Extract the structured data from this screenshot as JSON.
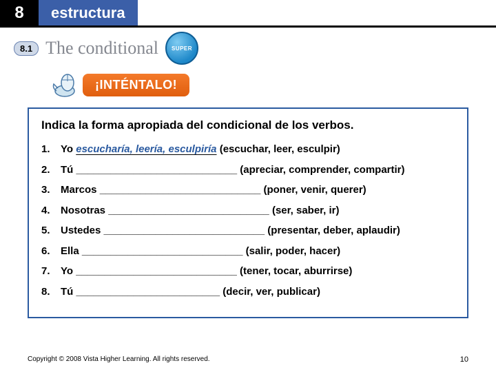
{
  "header": {
    "chapter": "8",
    "label": "estructura"
  },
  "section": {
    "badge": "8.1",
    "title": "The conditional",
    "super": "SUPER"
  },
  "intentalo": {
    "label": "¡INTÉNTALO!"
  },
  "exercise": {
    "instructions": "Indica la forma apropiada del condicional de los verbos.",
    "items": [
      {
        "n": "1.",
        "pre": "Yo ",
        "answer": "escucharía, leería, esculpiría",
        "blank": "",
        "post": " (escuchar, leer, esculpir)"
      },
      {
        "n": "2.",
        "pre": "Tú ",
        "answer": "",
        "blank": "____________________________",
        "post": " (apreciar, comprender, compartir)"
      },
      {
        "n": "3.",
        "pre": "Marcos ",
        "answer": "",
        "blank": "____________________________",
        "post": " (poner, venir, querer)"
      },
      {
        "n": "4.",
        "pre": "Nosotras ",
        "answer": "",
        "blank": "____________________________",
        "post": " (ser, saber, ir)"
      },
      {
        "n": "5.",
        "pre": "Ustedes ",
        "answer": "",
        "blank": "____________________________",
        "post": " (presentar, deber, aplaudir)"
      },
      {
        "n": "6.",
        "pre": "Ella ",
        "answer": "",
        "blank": "____________________________",
        "post": " (salir, poder, hacer)"
      },
      {
        "n": "7.",
        "pre": "Yo ",
        "answer": "",
        "blank": "____________________________",
        "post": " (tener, tocar, aburrirse)"
      },
      {
        "n": "8.",
        "pre": "Tú ",
        "answer": "",
        "blank": "_________________________",
        "post": " (decir, ver, publicar)"
      }
    ]
  },
  "footer": {
    "copyright": "Copyright © 2008 Vista Higher Learning. All rights reserved.",
    "page": "10"
  },
  "colors": {
    "accent_blue": "#2a5aa0",
    "header_blue": "#3b5fa8",
    "orange": "#e9681a"
  }
}
